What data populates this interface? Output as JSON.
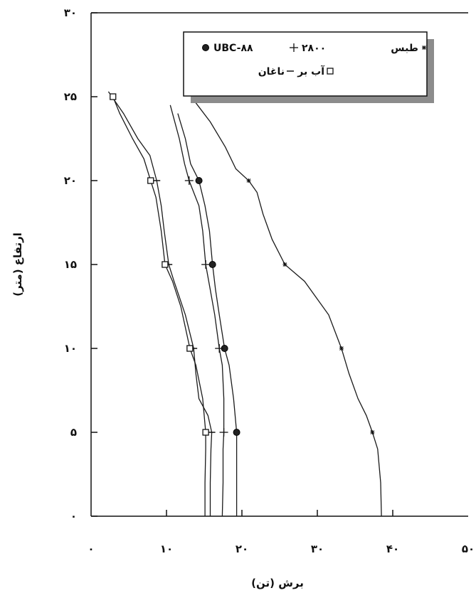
{
  "chart_data": {
    "type": "line",
    "title": "",
    "xlabel": "برش (تن)",
    "ylabel": "ارتفاع (متر)",
    "xlim": [
      0,
      50
    ],
    "ylim": [
      0,
      30
    ],
    "x_ticks": [
      0,
      10,
      20,
      30,
      40,
      50
    ],
    "y_ticks": [
      0,
      5,
      10,
      15,
      20,
      25,
      30
    ],
    "x_tick_labels": [
      "۰",
      "۱۰",
      "۲۰",
      "۳۰",
      "۴۰",
      "۵۰"
    ],
    "y_tick_labels": [
      "۰",
      "۵",
      "۱۰",
      "۱۵",
      "۲۰",
      "۲۵",
      "۳۰"
    ],
    "grid": false,
    "legend": {
      "placement": "top-right",
      "entries": [
        {
          "text": "UBC-۸۸",
          "marker": "filled-circle"
        },
        {
          "text": "۲۸۰۰",
          "marker": "plus"
        },
        {
          "text": "طبس",
          "marker": "star"
        },
        {
          "text": "ناغان",
          "marker": "dash"
        },
        {
          "text": "آب بر",
          "marker": "square"
        }
      ]
    },
    "series": [
      {
        "name": "طبس",
        "marker": "star",
        "marker_at": [
          5,
          10,
          15,
          20
        ],
        "points": [
          [
            38.5,
            0
          ],
          [
            38.4,
            2
          ],
          [
            38.0,
            4
          ],
          [
            37.3,
            5
          ],
          [
            36.5,
            6
          ],
          [
            35.4,
            7
          ],
          [
            34.2,
            8.5
          ],
          [
            33.2,
            10
          ],
          [
            31.5,
            12
          ],
          [
            28.3,
            14
          ],
          [
            25.7,
            15
          ],
          [
            24.0,
            16.5
          ],
          [
            22.8,
            18
          ],
          [
            22.0,
            19.3
          ],
          [
            20.9,
            20
          ],
          [
            19.2,
            20.7
          ],
          [
            17.8,
            22
          ],
          [
            15.8,
            23.5
          ],
          [
            13.6,
            24.8
          ]
        ]
      },
      {
        "name": "UBC-۸۸",
        "marker": "filled-circle",
        "marker_at": [
          5,
          10,
          15,
          20
        ],
        "points": [
          [
            19.3,
            0
          ],
          [
            19.3,
            2
          ],
          [
            19.3,
            4
          ],
          [
            19.3,
            5
          ],
          [
            18.9,
            7
          ],
          [
            18.3,
            9
          ],
          [
            17.7,
            10
          ],
          [
            17.0,
            12
          ],
          [
            16.5,
            13.5
          ],
          [
            16.1,
            15
          ],
          [
            15.7,
            17
          ],
          [
            15.1,
            18.5
          ],
          [
            14.3,
            20
          ],
          [
            13.2,
            21
          ],
          [
            12.5,
            22.5
          ],
          [
            11.5,
            24
          ]
        ]
      },
      {
        "name": "۲۸۰۰",
        "marker": "plus",
        "marker_at": [
          5,
          10,
          15,
          20
        ],
        "points": [
          [
            17.4,
            0
          ],
          [
            17.5,
            2
          ],
          [
            17.5,
            4
          ],
          [
            17.6,
            5
          ],
          [
            17.6,
            7
          ],
          [
            17.4,
            9
          ],
          [
            17.0,
            10
          ],
          [
            16.4,
            12
          ],
          [
            15.8,
            13.5
          ],
          [
            15.2,
            15
          ],
          [
            14.8,
            17
          ],
          [
            14.3,
            18.5
          ],
          [
            13.0,
            20
          ],
          [
            12.4,
            21
          ],
          [
            11.7,
            22.5
          ],
          [
            10.5,
            24.5
          ]
        ]
      },
      {
        "name": "ناغان",
        "marker": "dash",
        "marker_at": [
          5,
          10,
          15,
          20
        ],
        "points": [
          [
            15.8,
            0
          ],
          [
            15.8,
            2
          ],
          [
            15.9,
            4
          ],
          [
            16.0,
            5
          ],
          [
            15.5,
            6
          ],
          [
            14.3,
            7
          ],
          [
            13.9,
            8.5
          ],
          [
            13.6,
            10
          ],
          [
            12.5,
            12
          ],
          [
            11.0,
            14
          ],
          [
            10.3,
            15
          ],
          [
            9.7,
            17
          ],
          [
            9.3,
            18.5
          ],
          [
            8.7,
            20
          ],
          [
            7.8,
            21.5
          ],
          [
            6.2,
            22.5
          ],
          [
            4.3,
            24
          ],
          [
            2.3,
            25.3
          ]
        ]
      },
      {
        "name": "آب بر",
        "marker": "square",
        "marker_at": [
          5,
          10,
          15,
          20,
          25
        ],
        "points": [
          [
            15.1,
            0
          ],
          [
            15.1,
            2
          ],
          [
            15.2,
            4
          ],
          [
            15.2,
            5
          ],
          [
            14.8,
            7
          ],
          [
            13.9,
            9
          ],
          [
            13.1,
            10
          ],
          [
            11.9,
            12.5
          ],
          [
            10.8,
            14
          ],
          [
            9.8,
            15
          ],
          [
            9.3,
            17
          ],
          [
            8.6,
            19
          ],
          [
            7.9,
            20
          ],
          [
            7.0,
            21.3
          ],
          [
            5.5,
            22.5
          ],
          [
            3.8,
            24
          ],
          [
            2.9,
            25
          ]
        ]
      }
    ]
  }
}
